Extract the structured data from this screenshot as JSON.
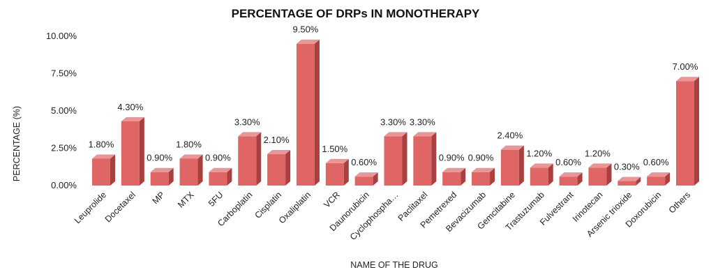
{
  "chart_data": {
    "type": "bar",
    "title": "PERCENTAGE OF DRPs IN MONOTHERAPY",
    "xlabel": "NAME OF THE DRUG",
    "ylabel": "PERCENTAGE (%)",
    "ylim": [
      0,
      10
    ],
    "yticks": [
      "0.00%",
      "2.50%",
      "5.00%",
      "7.50%",
      "10.00%"
    ],
    "ytick_values": [
      0,
      2.5,
      5,
      7.5,
      10
    ],
    "grid": false,
    "categories": [
      "Leuprolide",
      "Docetaxel",
      "MP",
      "MTX",
      "5FU",
      "Carboplatin",
      "Cisplatin",
      "Oxaliplatin",
      "VCR",
      "Daunorubicin",
      "Cyclophospha…",
      "Paclitaxel",
      "Pemetrexed",
      "Bevacizumab",
      "Gemcitabine",
      "Trastuzumab",
      "Fulvestrant",
      "Irinotecan",
      "Arsenic trioxide",
      "Doxorubicin",
      "Others"
    ],
    "values": [
      1.8,
      4.3,
      0.9,
      1.8,
      0.9,
      3.3,
      2.1,
      9.5,
      1.5,
      0.6,
      3.3,
      3.3,
      0.9,
      0.9,
      2.4,
      1.2,
      0.6,
      1.2,
      0.3,
      0.6,
      7.0
    ],
    "data_labels": [
      "1.80%",
      "4.30%",
      "0.90%",
      "1.80%",
      "0.90%",
      "3.30%",
      "2.10%",
      "9.50%",
      "1.50%",
      "0.60%",
      "3.30%",
      "3.30%",
      "0.90%",
      "0.90%",
      "2.40%",
      "1.20%",
      "0.60%",
      "1.20%",
      "0.30%",
      "0.60%",
      "7.00%"
    ],
    "colors": {
      "bar_front": "#e06666",
      "bar_side": "#a84040",
      "bar_top": "#ee9494"
    }
  }
}
